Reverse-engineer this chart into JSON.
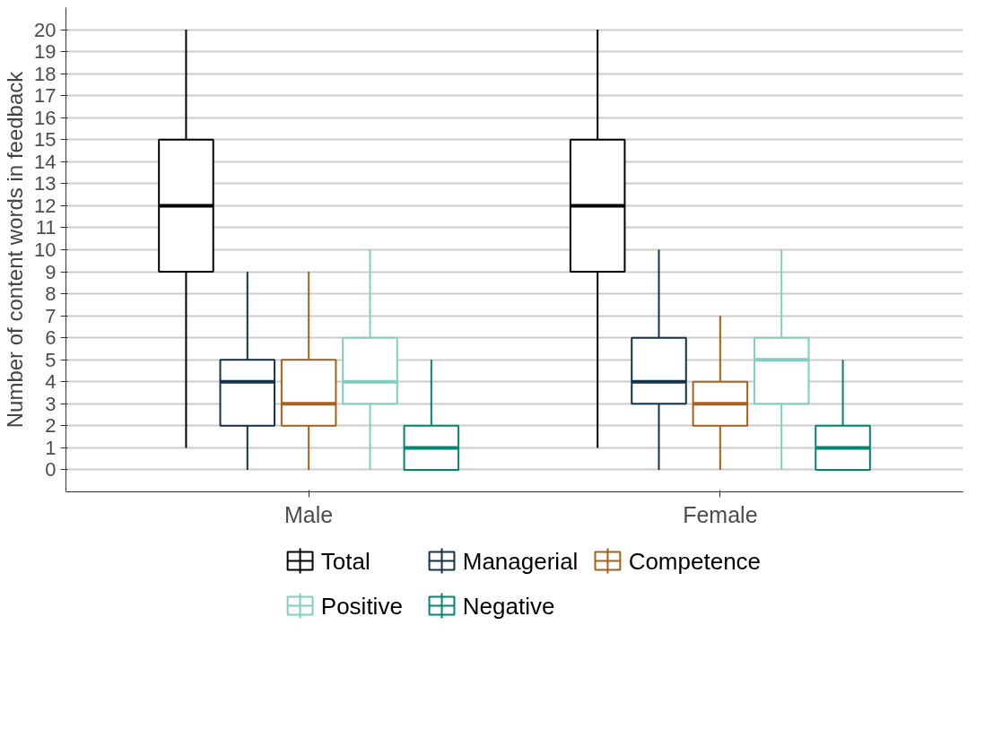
{
  "chart_data": {
    "type": "box",
    "categories": [
      "Male",
      "Female"
    ],
    "ylabel": "Number of content words in feedback",
    "ylim": [
      -1,
      21
    ],
    "yticks": [
      0,
      1,
      2,
      3,
      4,
      5,
      6,
      7,
      8,
      9,
      10,
      11,
      12,
      13,
      14,
      15,
      16,
      17,
      18,
      19,
      20
    ],
    "grid": "y",
    "legend": "bottom",
    "series": [
      {
        "name": "Total",
        "color": "#000000",
        "boxes": [
          {
            "low": 1,
            "q1": 9,
            "median": 12,
            "q3": 15,
            "high": 20
          },
          {
            "low": 1,
            "q1": 9,
            "median": 12,
            "q3": 15,
            "high": 20
          }
        ]
      },
      {
        "name": "Managerial",
        "color": "#14324c",
        "boxes": [
          {
            "low": 0,
            "q1": 2,
            "median": 4,
            "q3": 5,
            "high": 9
          },
          {
            "low": 0,
            "q1": 3,
            "median": 4,
            "q3": 6,
            "high": 10
          }
        ]
      },
      {
        "name": "Competence",
        "color": "#a6611a",
        "boxes": [
          {
            "low": 0,
            "q1": 2,
            "median": 3,
            "q3": 5,
            "high": 9
          },
          {
            "low": 0,
            "q1": 2,
            "median": 3,
            "q3": 4,
            "high": 7
          }
        ]
      },
      {
        "name": "Positive",
        "color": "#80cdc1",
        "boxes": [
          {
            "low": 0,
            "q1": 3,
            "median": 4,
            "q3": 6,
            "high": 10
          },
          {
            "low": 0,
            "q1": 3,
            "median": 5,
            "q3": 6,
            "high": 10
          }
        ]
      },
      {
        "name": "Negative",
        "color": "#018571",
        "boxes": [
          {
            "low": 0,
            "q1": 0,
            "median": 1,
            "q3": 2,
            "high": 5
          },
          {
            "low": 0,
            "q1": 0,
            "median": 1,
            "q3": 2,
            "high": 5
          }
        ]
      }
    ]
  }
}
